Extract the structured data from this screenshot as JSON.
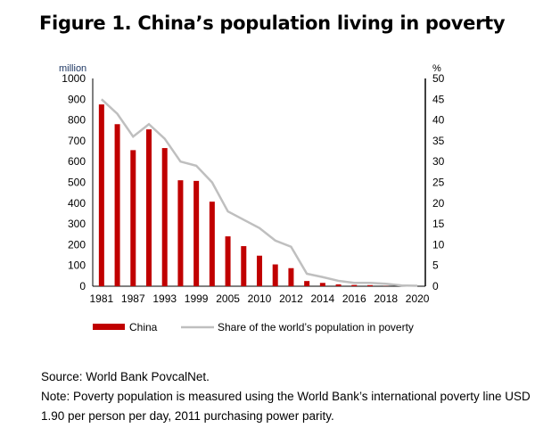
{
  "title": "Figure 1. China’s population living in poverty",
  "chart_data": {
    "type": "bar+line",
    "title": "Figure 1. China’s population living in poverty",
    "categories": [
      "1981",
      "1984",
      "1987",
      "1990",
      "1993",
      "1996",
      "1999",
      "2002",
      "2005",
      "2008",
      "2010",
      "2011",
      "2012",
      "2013",
      "2014",
      "2015",
      "2016",
      "2017",
      "2018",
      "2019",
      "2020"
    ],
    "tick_labels": [
      "1981",
      "1987",
      "1993",
      "1999",
      "2005",
      "2010",
      "2012",
      "2014",
      "2016",
      "2018",
      "2020"
    ],
    "left_axis": {
      "label": "million",
      "ylim": [
        0,
        1000
      ],
      "ticks": [
        0,
        100,
        200,
        300,
        400,
        500,
        600,
        700,
        800,
        900,
        1000
      ]
    },
    "right_axis": {
      "label": "%",
      "ylim": [
        0,
        50
      ],
      "ticks": [
        0,
        5,
        10,
        15,
        20,
        25,
        30,
        35,
        40,
        45,
        50
      ]
    },
    "series": [
      {
        "name": "China",
        "type": "bar",
        "axis": "left",
        "color": "#c00000",
        "values": [
          875,
          780,
          655,
          755,
          665,
          510,
          507,
          407,
          240,
          193,
          147,
          105,
          87,
          25,
          16,
          9,
          6,
          5,
          1,
          0.5,
          0
        ]
      },
      {
        "name": "Share of the world’s population in poverty",
        "type": "line",
        "axis": "right",
        "color": "#bfbfbf",
        "values": [
          45,
          41.5,
          36,
          39,
          35.5,
          30,
          29,
          25,
          18,
          16,
          14,
          11,
          9.5,
          3,
          2.2,
          1.3,
          0.8,
          0.8,
          0.6,
          0.2,
          0.1
        ]
      }
    ],
    "legend": "bottom"
  },
  "source": "Source: World Bank PovcalNet.",
  "note": "Note: Poverty population is measured using the World Bank’s international poverty line USD 1.90 per person per day, 2011 purchasing power parity."
}
